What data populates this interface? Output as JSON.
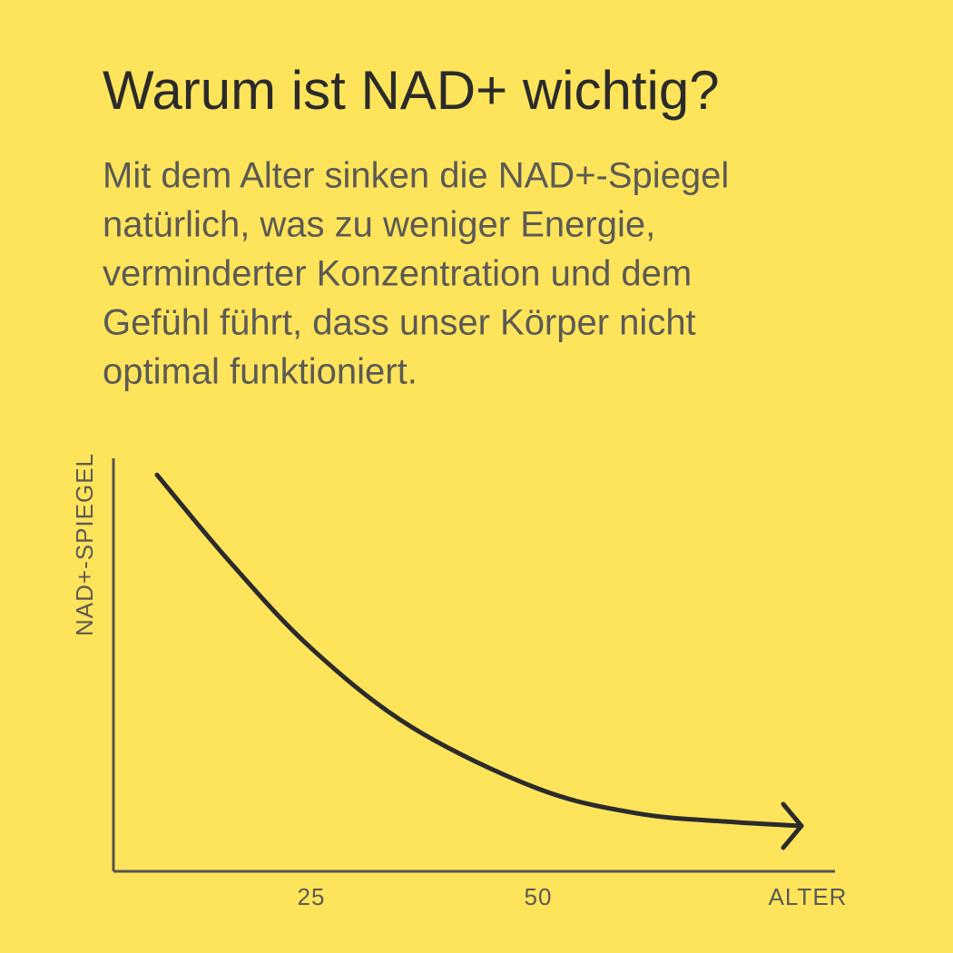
{
  "chart_data": {
    "type": "line",
    "title": "Warum ist NAD+ wichtig?",
    "subtitle_lines": [
      "Mit dem Alter sinken die NAD+-Spiegel",
      "natürlich, was zu weniger Energie,",
      "verminderter Konzentration und dem",
      "Gefühl führt, dass unser Körper nicht",
      "optimal funktioniert."
    ],
    "x_label": "ALTER",
    "y_label": "NAD+-SPIEGEL",
    "x": [
      8,
      16,
      25,
      36,
      50,
      61,
      71,
      79
    ],
    "series": [
      {
        "color": "#2b2b2b",
        "values": [
          96,
          75,
          54,
          35,
          20,
          14,
          12,
          11
        ]
      }
    ],
    "xlim": [
      3.2,
      82.7
    ],
    "xticks": [
      25,
      50
    ],
    "ylim": [
      0,
      100
    ],
    "grid": false
  }
}
